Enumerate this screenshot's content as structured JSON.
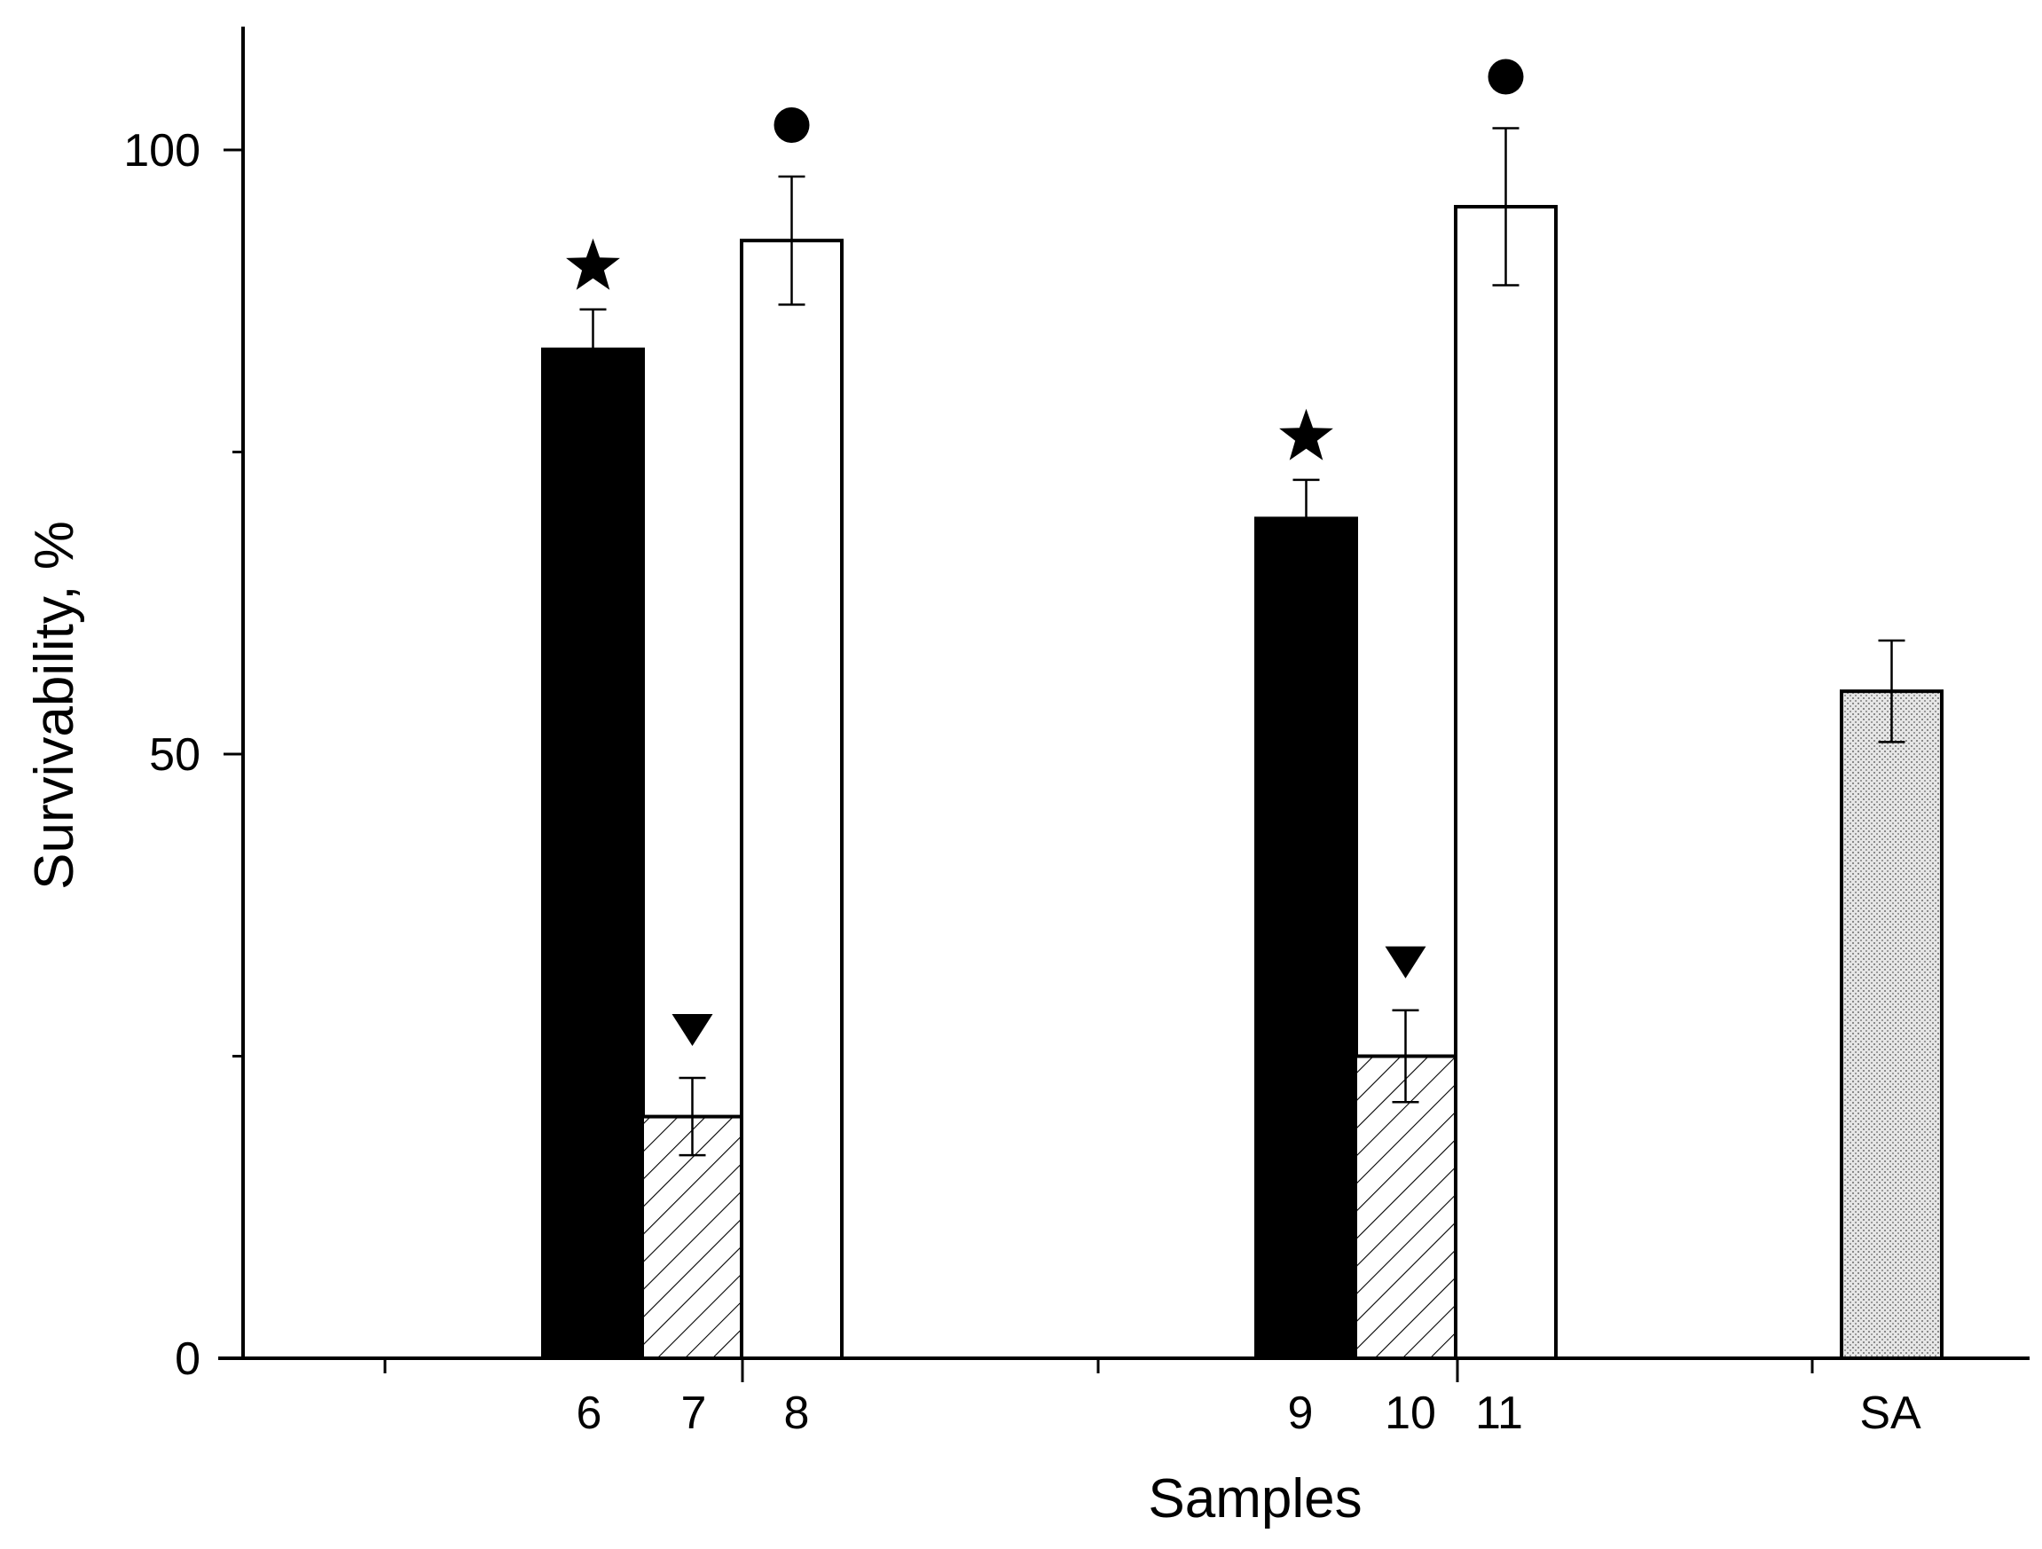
{
  "chart_data": {
    "type": "bar",
    "xlabel": "Samples",
    "ylabel": "Survivability, %",
    "ylim": [
      0,
      110
    ],
    "yticks": [
      0,
      50,
      100
    ],
    "grid": false,
    "legend": "none",
    "colors": {
      "solid": "#000000",
      "hatched": "#ffffff",
      "open": "#ffffff",
      "dotted": "#d9d9d9",
      "stroke": "#000000"
    },
    "bars": [
      {
        "label": "6",
        "value": 83.5,
        "error": 3.3,
        "fill": "solid",
        "marker": "star"
      },
      {
        "label": "7",
        "value": 20.0,
        "error": 3.2,
        "fill": "hatched",
        "marker": "triangle"
      },
      {
        "label": "8",
        "value": 92.5,
        "error": 5.3,
        "fill": "open",
        "marker": "circle"
      },
      {
        "label": "9",
        "value": 69.5,
        "error": 3.2,
        "fill": "solid",
        "marker": "star"
      },
      {
        "label": "10",
        "value": 25.0,
        "error": 3.8,
        "fill": "hatched",
        "marker": "triangle"
      },
      {
        "label": "11",
        "value": 95.3,
        "error": 6.5,
        "fill": "open",
        "marker": "circle"
      },
      {
        "label": "SA",
        "value": 55.2,
        "error": 4.2,
        "fill": "dotted",
        "marker": "none"
      }
    ]
  }
}
